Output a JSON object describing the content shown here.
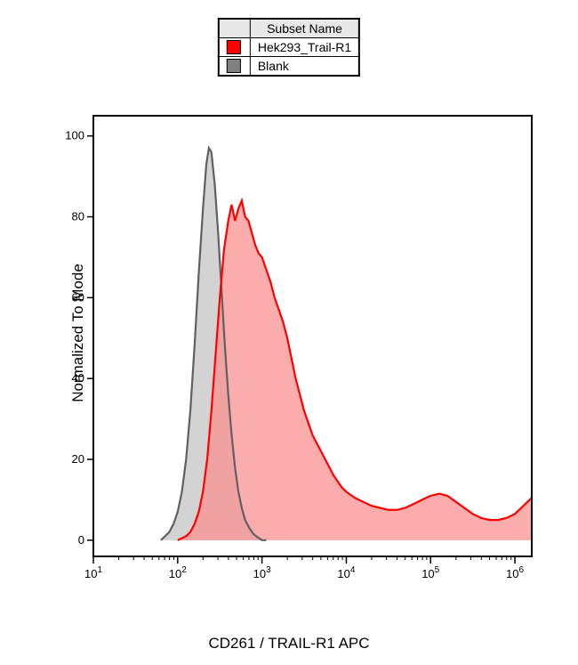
{
  "legend": {
    "header": "Subset Name",
    "header_bg": "#e8e8e8",
    "items": [
      {
        "color": "#ff0000",
        "fill": "#ff0000",
        "label": "Hek293_Trail-R1"
      },
      {
        "color": "#808080",
        "fill": "#808080",
        "label": "Blank"
      }
    ]
  },
  "chart": {
    "type": "histogram",
    "x_label": "CD261 / TRAIL-R1 APC",
    "y_label": "Normalized To Mode",
    "x_scale": "log",
    "x_range": [
      1,
      6.2
    ],
    "y_range": [
      -4,
      105
    ],
    "y_ticks": [
      0,
      20,
      40,
      60,
      80,
      100
    ],
    "x_decades": [
      1,
      2,
      3,
      4,
      5,
      6
    ],
    "border_color": "#000000",
    "background": "#ffffff",
    "label_fontsize": 17,
    "tick_fontsize": 13,
    "series": [
      {
        "name": "Blank",
        "stroke": "#606060",
        "stroke_width": 2.2,
        "fill": "#c0c0c0",
        "fill_opacity": 0.7,
        "points": [
          [
            1.8,
            0
          ],
          [
            1.85,
            1
          ],
          [
            1.9,
            2
          ],
          [
            1.95,
            4
          ],
          [
            2.0,
            7
          ],
          [
            2.05,
            12
          ],
          [
            2.1,
            20
          ],
          [
            2.15,
            32
          ],
          [
            2.2,
            48
          ],
          [
            2.25,
            66
          ],
          [
            2.3,
            82
          ],
          [
            2.34,
            93
          ],
          [
            2.37,
            97
          ],
          [
            2.4,
            96
          ],
          [
            2.44,
            88
          ],
          [
            2.48,
            76
          ],
          [
            2.52,
            62
          ],
          [
            2.56,
            48
          ],
          [
            2.6,
            36
          ],
          [
            2.64,
            26
          ],
          [
            2.68,
            18
          ],
          [
            2.72,
            12
          ],
          [
            2.76,
            8
          ],
          [
            2.8,
            5
          ],
          [
            2.85,
            3
          ],
          [
            2.9,
            1.5
          ],
          [
            2.95,
            0.7
          ],
          [
            3.0,
            0
          ],
          [
            3.05,
            0
          ]
        ]
      },
      {
        "name": "Hek293_Trail-R1",
        "stroke": "#ff0000",
        "stroke_width": 2.2,
        "fill": "#f99090",
        "fill_opacity": 0.75,
        "points": [
          [
            2.0,
            0
          ],
          [
            2.05,
            0.5
          ],
          [
            2.1,
            1
          ],
          [
            2.15,
            2
          ],
          [
            2.2,
            4
          ],
          [
            2.25,
            7
          ],
          [
            2.3,
            12
          ],
          [
            2.35,
            20
          ],
          [
            2.4,
            32
          ],
          [
            2.45,
            46
          ],
          [
            2.5,
            60
          ],
          [
            2.55,
            72
          ],
          [
            2.6,
            79
          ],
          [
            2.64,
            83
          ],
          [
            2.68,
            79
          ],
          [
            2.72,
            82
          ],
          [
            2.76,
            84
          ],
          [
            2.8,
            80
          ],
          [
            2.84,
            79
          ],
          [
            2.88,
            76
          ],
          [
            2.92,
            73
          ],
          [
            2.96,
            71
          ],
          [
            3.0,
            70
          ],
          [
            3.05,
            67
          ],
          [
            3.1,
            64
          ],
          [
            3.15,
            60
          ],
          [
            3.2,
            57
          ],
          [
            3.25,
            54
          ],
          [
            3.3,
            50
          ],
          [
            3.35,
            45
          ],
          [
            3.4,
            40
          ],
          [
            3.45,
            36
          ],
          [
            3.5,
            32
          ],
          [
            3.55,
            29
          ],
          [
            3.6,
            26
          ],
          [
            3.65,
            24
          ],
          [
            3.7,
            22
          ],
          [
            3.75,
            20
          ],
          [
            3.8,
            18
          ],
          [
            3.85,
            16
          ],
          [
            3.9,
            14.5
          ],
          [
            3.95,
            13
          ],
          [
            4.0,
            12
          ],
          [
            4.1,
            10.5
          ],
          [
            4.2,
            9.5
          ],
          [
            4.3,
            8.5
          ],
          [
            4.4,
            8
          ],
          [
            4.5,
            7.5
          ],
          [
            4.6,
            7.5
          ],
          [
            4.7,
            8
          ],
          [
            4.8,
            9
          ],
          [
            4.9,
            10
          ],
          [
            5.0,
            11
          ],
          [
            5.1,
            11.5
          ],
          [
            5.2,
            11
          ],
          [
            5.3,
            9.5
          ],
          [
            5.4,
            8
          ],
          [
            5.5,
            6.5
          ],
          [
            5.6,
            5.5
          ],
          [
            5.7,
            5
          ],
          [
            5.8,
            5
          ],
          [
            5.9,
            5.5
          ],
          [
            6.0,
            6.5
          ],
          [
            6.1,
            8.5
          ],
          [
            6.2,
            10.5
          ]
        ]
      }
    ]
  }
}
